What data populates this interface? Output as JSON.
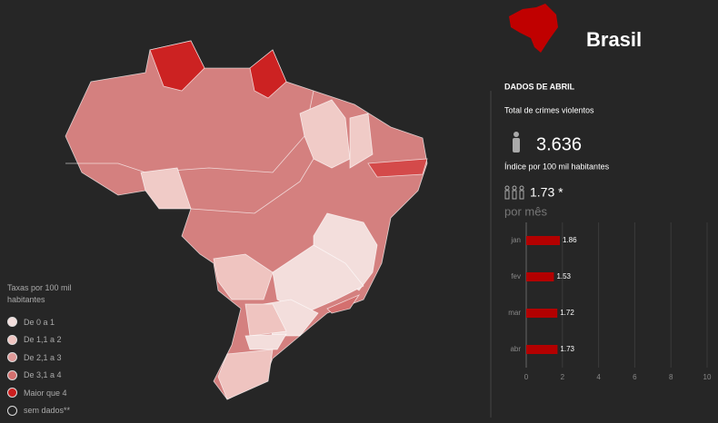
{
  "header": {
    "title": "Brasil",
    "period": "DADOS DE ABRIL"
  },
  "stats": {
    "total_label": "Total de crimes violentos",
    "total_value": "3.636",
    "index_label": "Índice por 100 mil habitantes",
    "index_value": "1.73 *",
    "monthly_label": "por mês"
  },
  "legend": {
    "title": "Taxas por 100 mil habitantes",
    "items": [
      {
        "label": "De 0 a 1",
        "color": "#f3dedc"
      },
      {
        "label": "De 1,1 a 2",
        "color": "#efc4c0"
      },
      {
        "label": "De 2,1 a 3",
        "color": "#df9a98"
      },
      {
        "label": "De 3,1 a 4",
        "color": "#d4706f"
      },
      {
        "label": "Maior que 4",
        "color": "#cc1f1f"
      },
      {
        "label": "sem dados**",
        "color": "none"
      }
    ]
  },
  "chart_data": {
    "type": "bar",
    "orientation": "horizontal",
    "categories": [
      "jan",
      "fev",
      "mar",
      "abr"
    ],
    "values": [
      1.86,
      1.53,
      1.72,
      1.73
    ],
    "color": "#b30000",
    "xlim": [
      0,
      10
    ],
    "xticks": [
      0,
      2,
      4,
      6,
      8,
      10
    ],
    "grid": true
  }
}
